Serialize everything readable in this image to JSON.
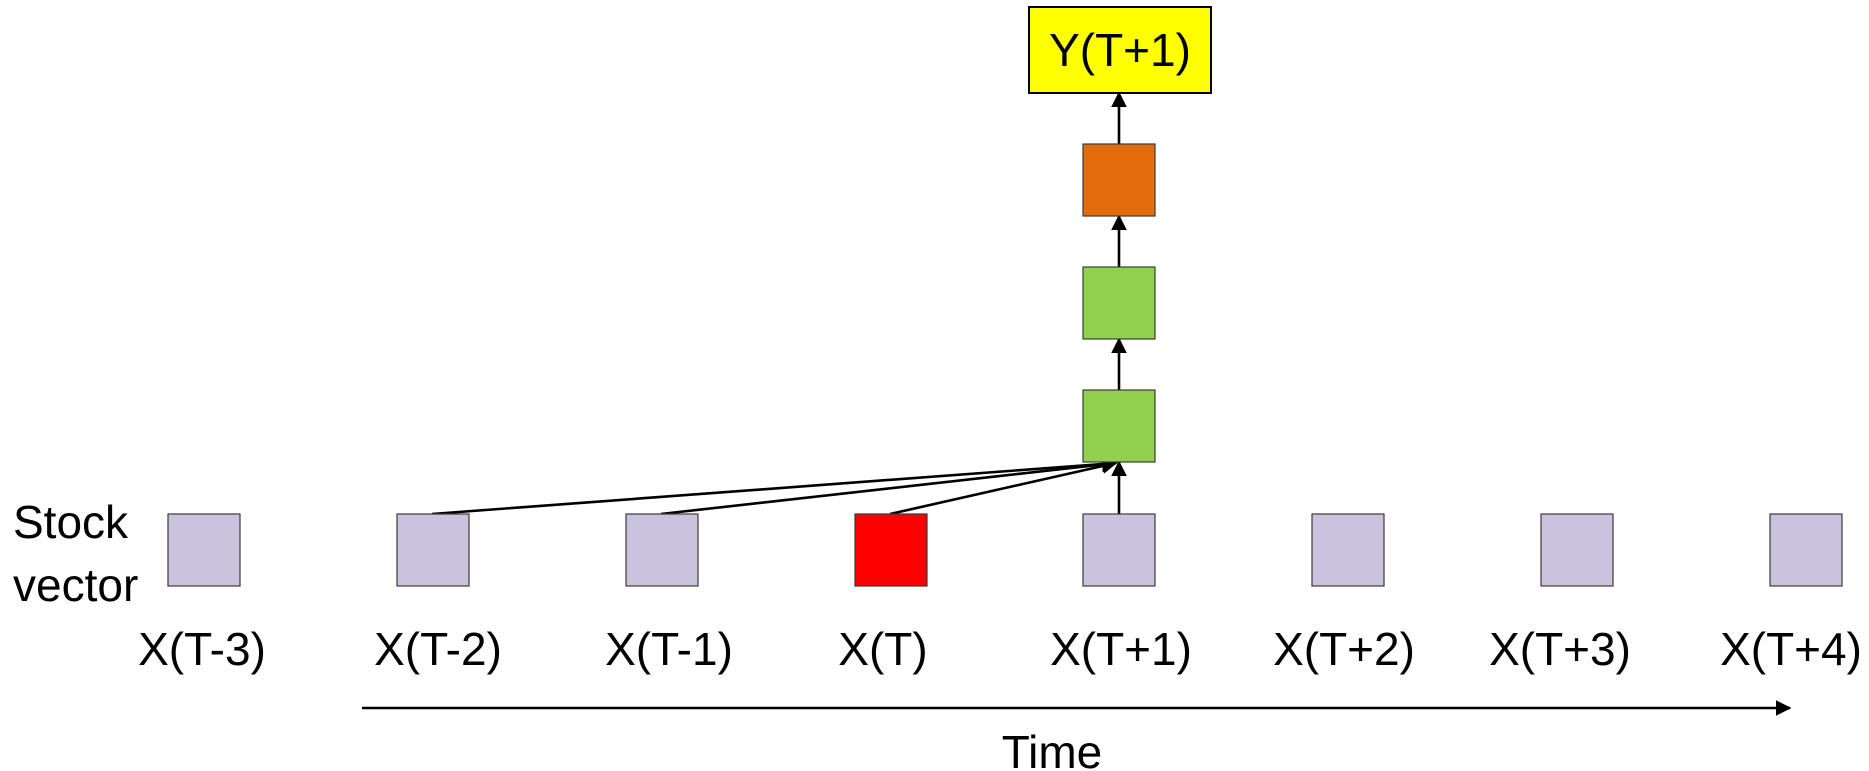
{
  "y_label": "Y(T+1)",
  "side_label": {
    "line1": "Stock",
    "line2": "vector"
  },
  "axis_label": "Time",
  "timesteps": [
    {
      "label": "X(T-3)",
      "role": "input"
    },
    {
      "label": "X(T-2)",
      "role": "input"
    },
    {
      "label": "X(T-1)",
      "role": "input"
    },
    {
      "label": "X(T)",
      "role": "highlighted"
    },
    {
      "label": "X(T+1)",
      "role": "input"
    },
    {
      "label": "X(T+2)",
      "role": "input"
    },
    {
      "label": "X(T+3)",
      "role": "input"
    },
    {
      "label": "X(T+4)",
      "role": "input"
    }
  ],
  "stack_nodes": [
    {
      "role": "hidden-green"
    },
    {
      "role": "hidden-green"
    },
    {
      "role": "output-orange"
    }
  ],
  "colors": {
    "input": "#cbc2dd",
    "highlighted": "#ff0000",
    "hidden-green": "#92d050",
    "output-orange": "#e46c0a",
    "output-box": "#ffff00",
    "edge": "#000000"
  }
}
